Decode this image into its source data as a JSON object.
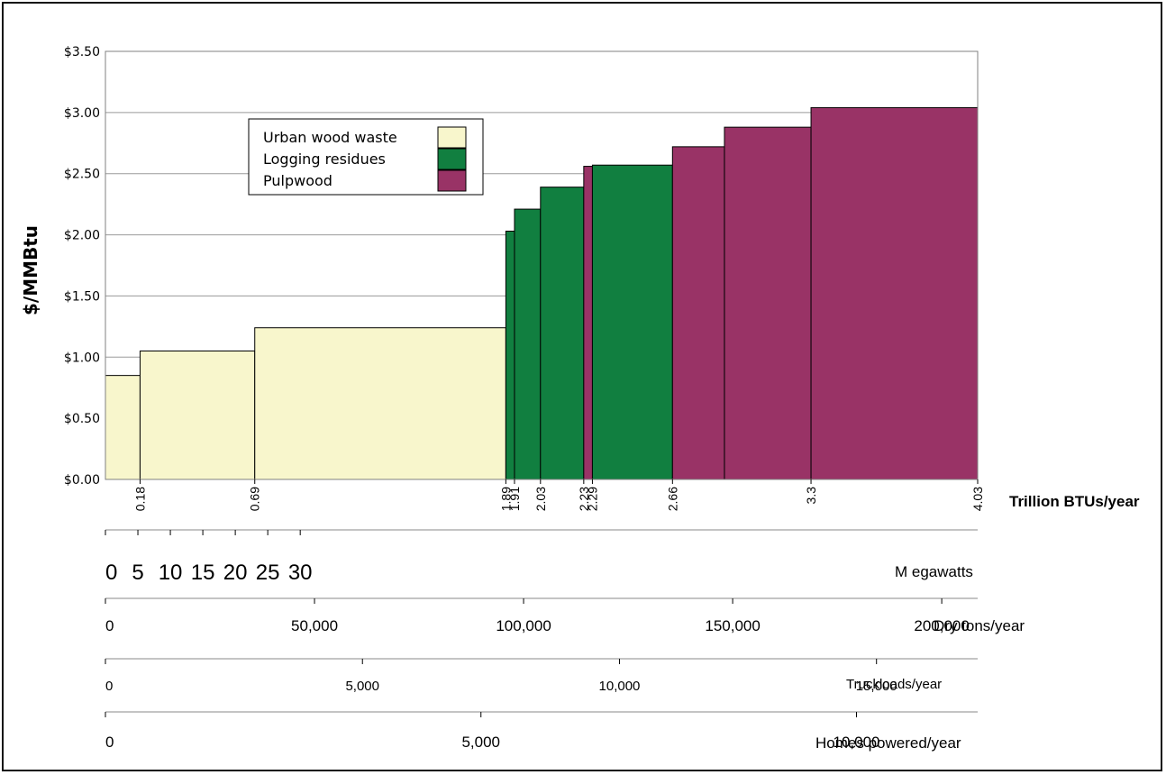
{
  "chart_data": {
    "type": "bar",
    "ylabel": "$/MMBtu",
    "xlabel": "Trillion BTUs/year",
    "ylim": [
      0,
      3.5
    ],
    "xlim": [
      0,
      4.03
    ],
    "y_ticks": [
      "$0.00",
      "$0.50",
      "$1.00",
      "$1.50",
      "$2.00",
      "$2.50",
      "$3.00",
      "$3.50"
    ],
    "grid": true,
    "legend_position": "top-left",
    "colors": {
      "Urban wood waste": "#f8f6cc",
      "Logging residues": "#117f40",
      "Pulpwood": "#993366"
    },
    "legend": [
      "Urban wood waste",
      "Logging residues",
      "Pulpwood"
    ],
    "segments": [
      {
        "x0": 0.0,
        "x1": 0.16,
        "value": 0.85,
        "series": "Urban wood waste"
      },
      {
        "x0": 0.16,
        "x1": 0.69,
        "value": 1.05,
        "series": "Urban wood waste"
      },
      {
        "x0": 0.69,
        "x1": 1.85,
        "value": 1.24,
        "series": "Urban wood waste"
      },
      {
        "x0": 1.85,
        "x1": 1.89,
        "value": 2.03,
        "series": "Logging residues"
      },
      {
        "x0": 1.89,
        "x1": 2.01,
        "value": 2.21,
        "series": "Logging residues"
      },
      {
        "x0": 2.01,
        "x1": 2.21,
        "value": 2.39,
        "series": "Logging residues"
      },
      {
        "x0": 2.21,
        "x1": 2.25,
        "value": 2.56,
        "series": "Pulpwood"
      },
      {
        "x0": 2.25,
        "x1": 2.62,
        "value": 2.57,
        "series": "Logging residues"
      },
      {
        "x0": 2.62,
        "x1": 2.86,
        "value": 2.72,
        "series": "Pulpwood"
      },
      {
        "x0": 2.86,
        "x1": 3.26,
        "value": 2.88,
        "series": "Pulpwood"
      },
      {
        "x0": 3.26,
        "x1": 4.03,
        "value": 3.04,
        "series": "Pulpwood"
      }
    ],
    "x_boundary_labels": [
      {
        "x": 0.16,
        "label": "0.18"
      },
      {
        "x": 0.69,
        "label": "0.69"
      },
      {
        "x": 1.85,
        "label": "1.89"
      },
      {
        "x": 1.89,
        "label": "1.91"
      },
      {
        "x": 2.01,
        "label": "2.03"
      },
      {
        "x": 2.21,
        "label": "2.23"
      },
      {
        "x": 2.25,
        "label": "2.29"
      },
      {
        "x": 2.62,
        "label": "2.66"
      },
      {
        "x": 3.26,
        "label": "3.3"
      },
      {
        "x": 4.03,
        "label": "4.03"
      }
    ],
    "secondary_axes": [
      {
        "label": "M egawatts",
        "ticks": [
          0,
          5,
          10,
          15,
          20,
          25,
          30
        ],
        "tick_labels": [
          "0",
          "5",
          "10",
          "15",
          "20",
          "25",
          "30"
        ],
        "trillion_btu_per_unit": 0.03
      }
    ],
    "conversion_scales": [
      {
        "label": "Dry tons/year",
        "ticks": [
          0,
          50000,
          100000,
          150000,
          200000
        ],
        "tick_labels": [
          "0",
          "50,000",
          "100,000",
          "150,000",
          "200,000"
        ],
        "trillion_btu_per_unit": 1.932e-05
      },
      {
        "label": "Truckloads/year",
        "ticks": [
          0,
          5000,
          10000,
          15000
        ],
        "tick_labels": [
          "0",
          "5,000",
          "10,000",
          "15,000"
        ],
        "trillion_btu_per_unit": 0.0002375
      },
      {
        "label": "Homes powered/year",
        "ticks": [
          0,
          5000,
          10000
        ],
        "tick_labels": [
          "0",
          "5,000",
          "10,000"
        ],
        "trillion_btu_per_unit": 0.000347
      }
    ]
  }
}
